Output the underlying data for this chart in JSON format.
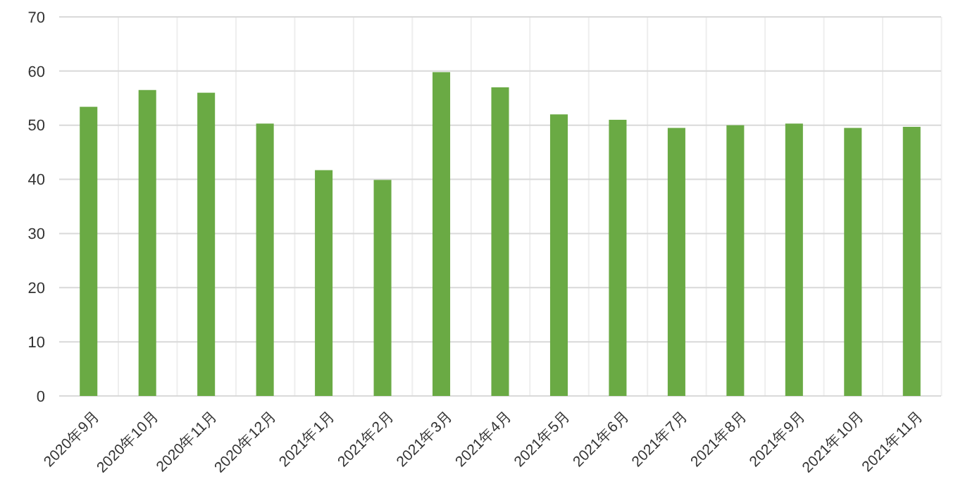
{
  "chart_data": {
    "type": "bar",
    "categories": [
      "2020年9月",
      "2020年10月",
      "2020年11月",
      "2020年12月",
      "2021年1月",
      "2021年2月",
      "2021年3月",
      "2021年4月",
      "2021年5月",
      "2021年6月",
      "2021年7月",
      "2021年8月",
      "2021年9月",
      "2021年10月",
      "2021年11月"
    ],
    "values": [
      53.4,
      56.5,
      56,
      50.3,
      41.7,
      39.9,
      59.8,
      57,
      52,
      51,
      49.5,
      50,
      50.3,
      49.5,
      49.7
    ],
    "color": "#6aaa44",
    "ylim": [
      0,
      70
    ],
    "yticks": [
      0,
      10,
      20,
      30,
      40,
      50,
      60,
      70
    ],
    "grid": true
  }
}
